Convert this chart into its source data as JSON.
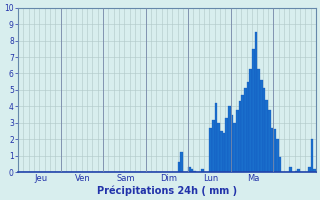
{
  "xlabel": "Précipitations 24h ( mm )",
  "ylim": [
    0,
    10
  ],
  "background_color": "#d8eeee",
  "bar_color": "#1a6fcc",
  "bar_edge_color": "#1050bb",
  "grid_color": "#b0c8c8",
  "axis_label_color": "#2233aa",
  "tick_label_color": "#2233aa",
  "day_line_color": "#7788aa",
  "bar_values": [
    0,
    0,
    0,
    0,
    0,
    0,
    0,
    0,
    0,
    0,
    0,
    0,
    0,
    0,
    0,
    0,
    0,
    0,
    0,
    0,
    0,
    0,
    0,
    0,
    0,
    0,
    0,
    0,
    0,
    0,
    0,
    0,
    0,
    0,
    0,
    0,
    0,
    0,
    0,
    0,
    0,
    0,
    0,
    0,
    0,
    0,
    0,
    0,
    0,
    0,
    0,
    0,
    0,
    0,
    0,
    0,
    0,
    0,
    0,
    0,
    0.6,
    1.2,
    0,
    0,
    0.3,
    0.2,
    0.1,
    0,
    0,
    0.2,
    0,
    0,
    2.7,
    3.2,
    4.2,
    3.0,
    2.5,
    2.4,
    3.3,
    4.0,
    3.5,
    3.0,
    3.8,
    4.3,
    4.7,
    5.1,
    5.5,
    6.3,
    7.5,
    8.5,
    6.3,
    5.6,
    5.1,
    4.4,
    3.8,
    2.7,
    2.6,
    2.0,
    0.9,
    0,
    0,
    0,
    0.3,
    0,
    0.1,
    0.2,
    0,
    0,
    0,
    0.3,
    2.0,
    0.2
  ],
  "day_labels": [
    "Jeu",
    "Ven",
    "Sam",
    "Dim",
    "Lun",
    "Ma"
  ],
  "day_tick_positions": [
    8,
    24,
    40,
    56,
    72,
    88
  ],
  "day_line_positions": [
    16,
    32,
    48,
    64,
    80,
    96
  ],
  "yticks": [
    0,
    1,
    2,
    3,
    4,
    5,
    6,
    7,
    8,
    9,
    10
  ],
  "num_bars": 112
}
